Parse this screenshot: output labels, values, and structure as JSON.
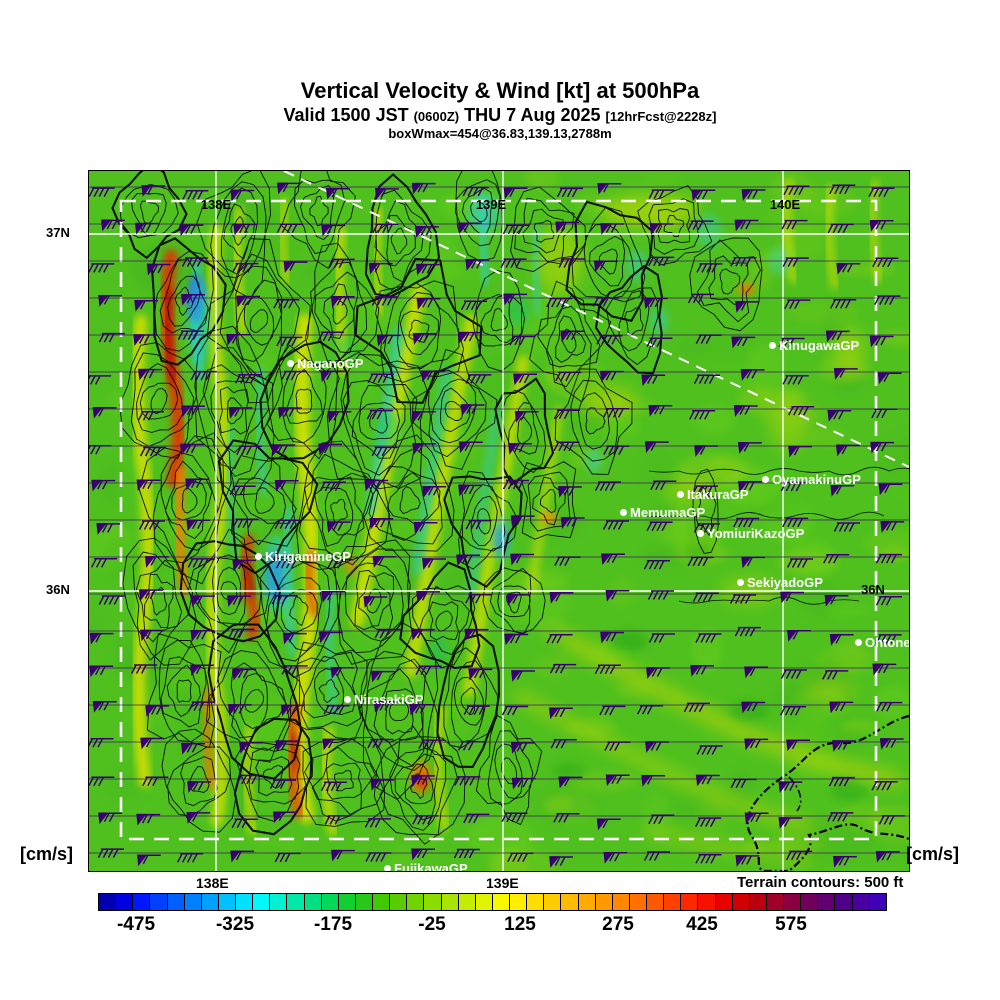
{
  "header": {
    "title": "Vertical Velocity & Wind [kt] at 500hPa",
    "valid_prefix": "Valid 1500 JST",
    "valid_utc": "(0600Z)",
    "valid_date": "THU 7 Aug 2025",
    "forecast_tag": "[12hrFcst@2228z]",
    "box_max": "boxWmax=454@36.83,139.13,2788m"
  },
  "axes": {
    "lon_top": [
      "138E",
      "139E",
      "140E"
    ],
    "lon_bottom": [
      "138E",
      "139E"
    ],
    "lat_left": [
      "37N",
      "36N"
    ],
    "lat_right_inner": "36N",
    "units_left": "[cm/s]",
    "units_right": "[cm/s]"
  },
  "map": {
    "stations": [
      {
        "name": "NaganoGP"
      },
      {
        "name": "KinugawaGP"
      },
      {
        "name": "OyamakinuGP"
      },
      {
        "name": "ItakuraGP"
      },
      {
        "name": "MemumaGP"
      },
      {
        "name": "YomiuriKazoGP"
      },
      {
        "name": "KirigamineGP"
      },
      {
        "name": "SekiyadoGP"
      },
      {
        "name": "OhtoneGP"
      },
      {
        "name": "NirasakiGP"
      },
      {
        "name": "FujikawaGP"
      }
    ]
  },
  "legend": {
    "terrain_note": "Terrain contours: 500 ft",
    "colorbar_ticks": [
      "-475",
      "-325",
      "-175",
      "-25",
      "125",
      "275",
      "425",
      "575"
    ],
    "colorbar_colors": [
      "#0000b0",
      "#0000e0",
      "#0018ff",
      "#0040ff",
      "#0060ff",
      "#0080ff",
      "#00a0ff",
      "#00c0ff",
      "#00e0ff",
      "#00f8f8",
      "#00f0d0",
      "#00e8a8",
      "#00e080",
      "#00d858",
      "#10d030",
      "#28c818",
      "#40c800",
      "#58cc00",
      "#70d400",
      "#8cdc00",
      "#a8e400",
      "#c4ec00",
      "#e0f400",
      "#f8f800",
      "#ffee00",
      "#ffdd00",
      "#ffcc00",
      "#ffbb00",
      "#ffaa00",
      "#ff9900",
      "#ff8800",
      "#ff7000",
      "#ff5800",
      "#ff4000",
      "#ff2800",
      "#f81000",
      "#e80000",
      "#d00000",
      "#b80010",
      "#a00028",
      "#880040",
      "#700058",
      "#600070",
      "#500088",
      "#4800a0",
      "#4000b8"
    ]
  },
  "chart_data": {
    "type": "heatmap",
    "title": "Vertical Velocity & Wind [kt] at 500hPa",
    "field": "vertical velocity",
    "field_units": "cm/s",
    "wind_units": "kt",
    "level": "500hPa",
    "valid_local": "1500 JST THU 7 Aug 2025",
    "valid_utc": "0600Z",
    "forecast": "12hrFcst@2228z",
    "box_w_max": {
      "w_cm_s": 454,
      "lat": 36.83,
      "lon": 139.13,
      "height_m": 2788
    },
    "colorbar": {
      "orientation": "horizontal",
      "tick_values": [
        -475,
        -325,
        -175,
        -25,
        125,
        275,
        425,
        575
      ]
    },
    "graticule": {
      "meridians_top": [
        "138E",
        "139E",
        "140E"
      ],
      "meridians_bottom": [
        "138E",
        "139E"
      ],
      "parallels": [
        "37N",
        "36N"
      ]
    },
    "terrain_contour_interval_ft": 500,
    "stations": [
      "NaganoGP",
      "KinugawaGP",
      "OyamakinuGP",
      "ItakuraGP",
      "MemumaGP",
      "YomiuriKazoGP",
      "KirigamineGP",
      "SekiyadoGP",
      "OhtoneGP",
      "NirasakiGP",
      "FujikawaGP"
    ]
  }
}
